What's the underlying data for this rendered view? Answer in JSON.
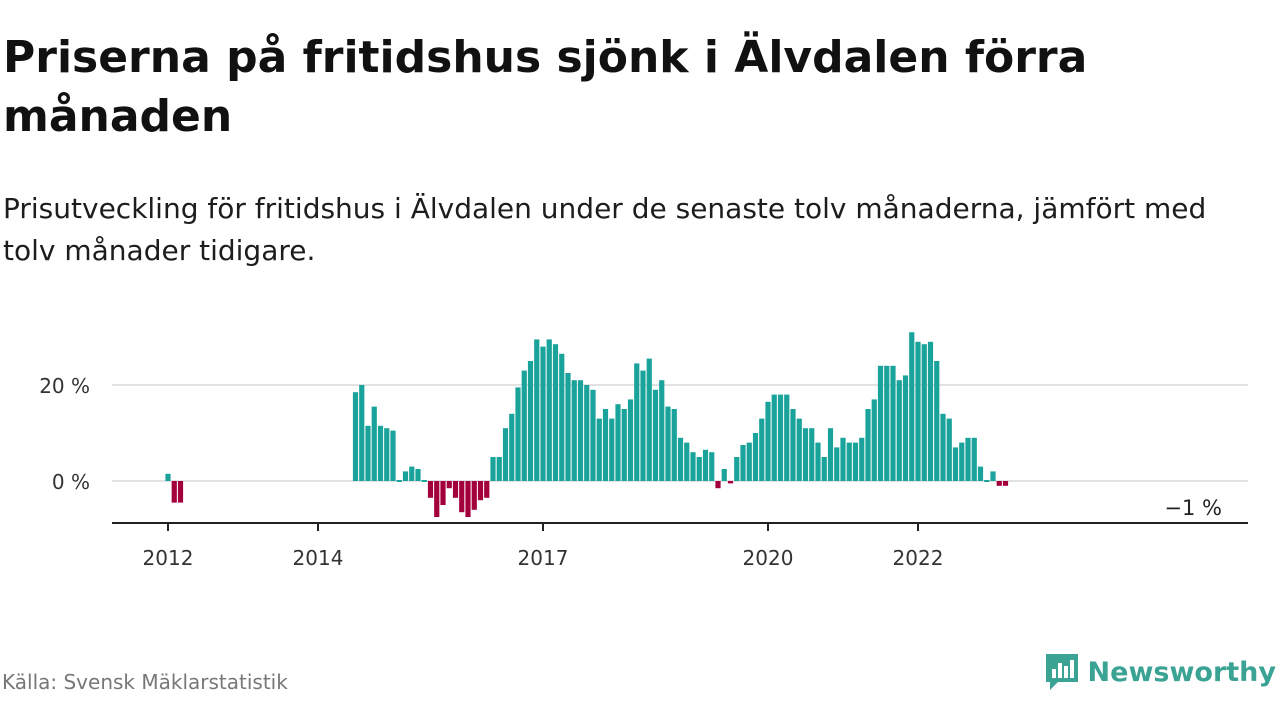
{
  "title": "Priserna på fritidshus sjönk i Älvdalen förra månaden",
  "subtitle": "Prisutveckling för fritidshus i Älvdalen under de senaste tolv månaderna, jämfört med tolv månader tidigare.",
  "source": "Källa: Svensk Mäklarstatistik",
  "brand": {
    "name": "Newsworthy",
    "icon": "newsworthy-logo-icon",
    "color": "#3aa394"
  },
  "chart_data": {
    "type": "bar",
    "title": "",
    "xlabel": "",
    "ylabel": "",
    "unit": "%",
    "start_month": "2012-01",
    "ylim": [
      -9,
      33
    ],
    "yticks": [
      {
        "value": 0,
        "label": "0 %"
      },
      {
        "value": 20,
        "label": "20 %"
      }
    ],
    "xticks": [
      {
        "label": "2012",
        "month": "2012-01"
      },
      {
        "label": "2014",
        "month": "2014-01"
      },
      {
        "label": "2017",
        "month": "2017-01"
      },
      {
        "label": "2020",
        "month": "2020-01"
      },
      {
        "label": "2022",
        "month": "2022-01"
      }
    ],
    "grid": true,
    "legend": "none",
    "colors": {
      "positive": "#1aa39a",
      "negative": "#a3003b",
      "grid": "#d9d9d9",
      "axis": "#222222"
    },
    "end_label": "−1 %",
    "values": [
      1.5,
      -4.5,
      -4.5,
      null,
      null,
      null,
      null,
      null,
      null,
      null,
      null,
      null,
      null,
      null,
      null,
      null,
      null,
      null,
      null,
      null,
      null,
      null,
      null,
      null,
      null,
      null,
      null,
      null,
      null,
      null,
      18.5,
      20,
      11.5,
      15.5,
      11.5,
      11,
      10.5,
      0,
      2,
      3,
      2.5,
      0,
      -3.5,
      -7.5,
      -5,
      -1.5,
      -3.5,
      -6.5,
      -7.5,
      -6,
      -4,
      -3.5,
      5,
      5,
      11,
      14,
      19.5,
      23,
      25,
      29.5,
      28,
      29.5,
      28.5,
      26.5,
      22.5,
      21,
      21,
      20,
      19,
      13,
      15,
      13,
      16,
      15,
      17,
      24.5,
      23,
      25.5,
      19,
      21,
      15.5,
      15,
      9,
      8,
      6,
      5,
      6.5,
      6,
      -1.5,
      2.5,
      -0.5,
      5,
      7.5,
      8,
      10,
      13,
      16.5,
      18,
      18,
      18,
      15,
      13,
      11,
      11,
      8,
      5,
      11,
      7,
      9,
      8,
      8,
      9,
      15,
      17,
      24,
      24,
      24,
      21,
      22,
      31,
      29,
      28.5,
      29,
      25,
      14,
      13,
      7,
      8,
      9,
      9,
      3,
      0,
      2,
      -1,
      -1
    ]
  }
}
